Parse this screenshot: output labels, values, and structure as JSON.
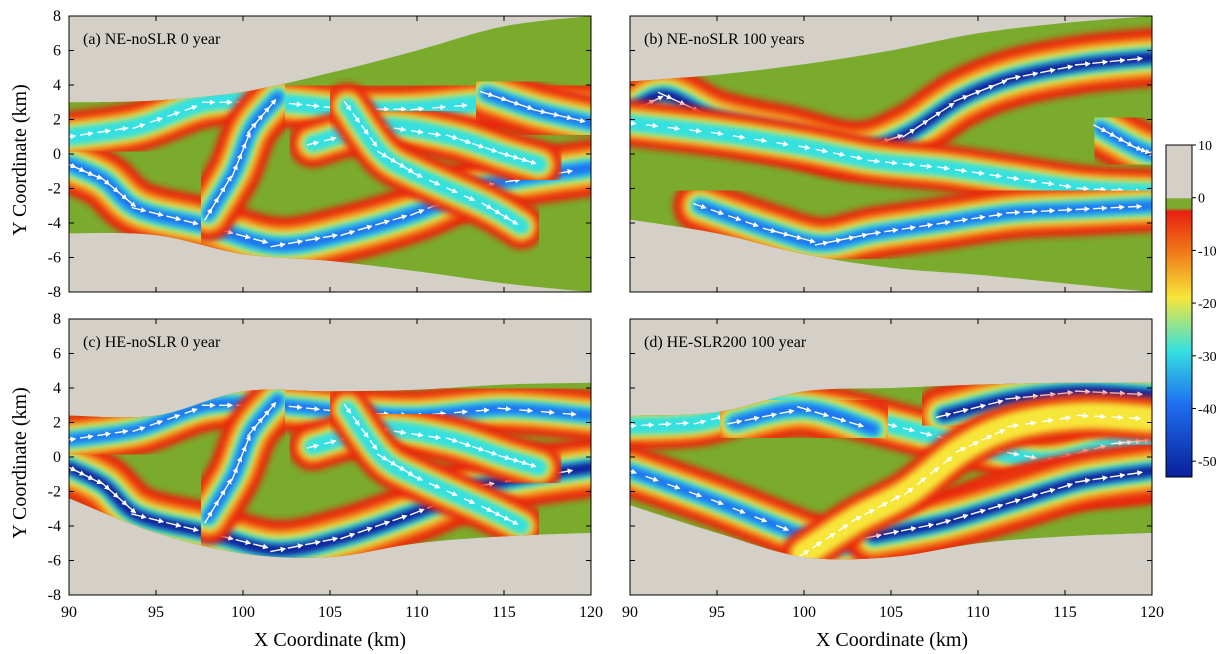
{
  "chart_data": {
    "type": "heatmap",
    "shared_ylabel": "Y Coordinate (km)",
    "shared_xlabel": "X Coordinate (km)",
    "xlim": [
      90,
      120
    ],
    "ylim": [
      -8,
      8
    ],
    "xticks": [
      90,
      95,
      100,
      105,
      110,
      115,
      120
    ],
    "yticks": [
      -8,
      -6,
      -4,
      -2,
      0,
      2,
      4,
      6,
      8
    ],
    "grid": false,
    "colorbar": {
      "range": [
        -53,
        10
      ],
      "ticks": [
        10,
        0,
        -10,
        -20,
        -30,
        -40,
        -50
      ],
      "colors": {
        "land": "#d4d0c8",
        "shoal": "#7aab2c",
        "shallow": "#e82010",
        "mid": "#f7e63a",
        "deep_mid": "#35e0e0",
        "deep": "#0a1f9a"
      }
    },
    "vector_color": "#ffffff",
    "panels": [
      {
        "title": "(a) NE-noSLR 0 year",
        "domain_x": [
          90,
          120
        ],
        "domain_top": [
          [
            90,
            3.0
          ],
          [
            95,
            3.1
          ],
          [
            100,
            3.6
          ],
          [
            105,
            4.7
          ],
          [
            110,
            6.0
          ],
          [
            115,
            7.4
          ],
          [
            120,
            8.0
          ]
        ],
        "domain_bottom": [
          [
            90,
            -4.6
          ],
          [
            95,
            -4.7
          ],
          [
            100,
            -5.8
          ],
          [
            105,
            -6.2
          ],
          [
            110,
            -6.8
          ],
          [
            115,
            -7.5
          ],
          [
            120,
            -8.0
          ]
        ],
        "channels": [
          {
            "points": [
              [
                90,
                -0.6
              ],
              [
                92,
                -1.5
              ],
              [
                94,
                -3.2
              ],
              [
                98,
                -4.2
              ],
              [
                102,
                -5.3
              ],
              [
                106,
                -4.6
              ],
              [
                110,
                -3.4
              ],
              [
                114,
                -1.8
              ],
              [
                120,
                -0.8
              ]
            ],
            "depth": -45
          },
          {
            "points": [
              [
                90,
                1.0
              ],
              [
                94,
                1.6
              ],
              [
                98,
                3.0
              ],
              [
                102,
                3.0
              ],
              [
                106,
                2.6
              ],
              [
                110,
                2.6
              ],
              [
                115,
                3.0
              ],
              [
                120,
                2.6
              ]
            ],
            "depth": -34
          },
          {
            "points": [
              [
                98,
                -3.5
              ],
              [
                99.5,
                -1.0
              ],
              [
                100.5,
                1.5
              ],
              [
                102,
                3.3
              ]
            ],
            "depth": -40
          },
          {
            "points": [
              [
                104,
                0.6
              ],
              [
                108,
                1.6
              ],
              [
                112,
                1.0
              ],
              [
                115,
                0.0
              ],
              [
                117,
                -0.6
              ]
            ],
            "depth": -30
          },
          {
            "points": [
              [
                106,
                2.8
              ],
              [
                108,
                0.0
              ],
              [
                110,
                -1.2
              ],
              [
                114,
                -3.0
              ],
              [
                116,
                -4.2
              ]
            ],
            "depth": -26
          },
          {
            "points": [
              [
                114,
                3.5
              ],
              [
                117,
                2.5
              ],
              [
                120,
                1.8
              ]
            ],
            "depth": -42
          }
        ]
      },
      {
        "title": "(b) NE-noSLR 100 years",
        "domain_x": [
          90,
          120
        ],
        "domain_top": [
          [
            90,
            4.2
          ],
          [
            95,
            4.6
          ],
          [
            100,
            5.2
          ],
          [
            105,
            6.0
          ],
          [
            110,
            7.0
          ],
          [
            115,
            7.6
          ],
          [
            120,
            8.0
          ]
        ],
        "domain_bottom": [
          [
            90,
            -3.8
          ],
          [
            95,
            -4.6
          ],
          [
            100,
            -5.8
          ],
          [
            105,
            -6.6
          ],
          [
            110,
            -7.0
          ],
          [
            115,
            -7.5
          ],
          [
            120,
            -8.0
          ]
        ],
        "channels": [
          {
            "points": [
              [
                90,
                2.4
              ],
              [
                92,
                3.4
              ],
              [
                95,
                2.0
              ],
              [
                99,
                1.1
              ],
              [
                103,
                0.2
              ],
              [
                106,
                1.2
              ],
              [
                109,
                3.2
              ],
              [
                112,
                4.4
              ],
              [
                116,
                5.2
              ],
              [
                120,
                5.6
              ]
            ],
            "depth": -48
          },
          {
            "points": [
              [
                90,
                1.8
              ],
              [
                95,
                1.2
              ],
              [
                100,
                0.4
              ],
              [
                104,
                -0.4
              ],
              [
                108,
                -0.8
              ],
              [
                112,
                -1.4
              ],
              [
                116,
                -2.0
              ],
              [
                120,
                -2.2
              ]
            ],
            "depth": -28
          },
          {
            "points": [
              [
                94,
                -3.0
              ],
              [
                98,
                -4.4
              ],
              [
                101,
                -5.2
              ],
              [
                104,
                -4.6
              ],
              [
                108,
                -4.0
              ],
              [
                112,
                -3.4
              ],
              [
                116,
                -3.2
              ],
              [
                120,
                -3.0
              ]
            ],
            "depth": -38
          },
          {
            "points": [
              [
                117,
                1.5
              ],
              [
                119,
                0.4
              ],
              [
                120,
                0.0
              ]
            ],
            "depth": -45
          }
        ]
      },
      {
        "title": "(c) HE-noSLR 0 year",
        "domain_x": [
          90,
          120
        ],
        "domain_top": [
          [
            90,
            2.4
          ],
          [
            95,
            2.4
          ],
          [
            100,
            3.8
          ],
          [
            105,
            3.8
          ],
          [
            110,
            3.9
          ],
          [
            115,
            4.2
          ],
          [
            120,
            4.3
          ]
        ],
        "domain_bottom": [
          [
            90,
            -2.4
          ],
          [
            95,
            -4.4
          ],
          [
            100,
            -5.6
          ],
          [
            105,
            -5.8
          ],
          [
            110,
            -5.0
          ],
          [
            115,
            -4.6
          ],
          [
            120,
            -4.4
          ]
        ],
        "channels": [
          {
            "points": [
              [
                90,
                -0.6
              ],
              [
                92,
                -1.6
              ],
              [
                94,
                -3.4
              ],
              [
                98,
                -4.4
              ],
              [
                102,
                -5.4
              ],
              [
                106,
                -4.6
              ],
              [
                110,
                -3.2
              ],
              [
                114,
                -1.6
              ],
              [
                120,
                -0.6
              ]
            ],
            "depth": -50
          },
          {
            "points": [
              [
                90,
                1.0
              ],
              [
                94,
                1.6
              ],
              [
                98,
                3.0
              ],
              [
                102,
                3.0
              ],
              [
                106,
                2.6
              ],
              [
                110,
                2.4
              ],
              [
                115,
                2.8
              ],
              [
                120,
                2.4
              ]
            ],
            "depth": -36
          },
          {
            "points": [
              [
                98,
                -3.5
              ],
              [
                99.5,
                -1.0
              ],
              [
                100.5,
                1.5
              ],
              [
                102,
                3.3
              ]
            ],
            "depth": -40
          },
          {
            "points": [
              [
                104,
                0.6
              ],
              [
                108,
                1.6
              ],
              [
                112,
                1.0
              ],
              [
                115,
                0.0
              ],
              [
                117,
                -0.6
              ]
            ],
            "depth": -30
          },
          {
            "points": [
              [
                106,
                2.8
              ],
              [
                108,
                0.0
              ],
              [
                110,
                -1.2
              ],
              [
                114,
                -3.0
              ],
              [
                116,
                -4.0
              ]
            ],
            "depth": -26
          }
        ]
      },
      {
        "title": "(d) HE-SLR200 100 year",
        "domain_x": [
          90,
          120
        ],
        "domain_top": [
          [
            90,
            2.4
          ],
          [
            95,
            2.6
          ],
          [
            100,
            3.8
          ],
          [
            105,
            4.0
          ],
          [
            110,
            4.2
          ],
          [
            115,
            4.3
          ],
          [
            120,
            4.3
          ]
        ],
        "domain_bottom": [
          [
            90,
            -2.8
          ],
          [
            95,
            -4.4
          ],
          [
            100,
            -5.8
          ],
          [
            105,
            -5.8
          ],
          [
            110,
            -5.0
          ],
          [
            115,
            -4.6
          ],
          [
            120,
            -4.4
          ]
        ],
        "channels": [
          {
            "points": [
              [
                90,
                1.8
              ],
              [
                94,
                2.0
              ],
              [
                98,
                3.0
              ],
              [
                102,
                2.6
              ],
              [
                106,
                1.6
              ],
              [
                110,
                0.6
              ],
              [
                114,
                -0.2
              ],
              [
                118,
                0.8
              ],
              [
                120,
                1.0
              ]
            ],
            "depth": -30
          },
          {
            "points": [
              [
                96,
                2.0
              ],
              [
                100,
                2.8
              ],
              [
                104,
                1.6
              ]
            ],
            "depth": -45
          },
          {
            "points": [
              [
                90,
                -0.8
              ],
              [
                95,
                -2.6
              ],
              [
                100,
                -4.6
              ],
              [
                102,
                -5.2
              ],
              [
                105,
                -4.6
              ],
              [
                108,
                -3.6
              ],
              [
                111,
                -2.4
              ],
              [
                114,
                -1.6
              ],
              [
                118,
                -1.4
              ],
              [
                120,
                -1.2
              ]
            ],
            "depth": -36
          },
          {
            "points": [
              [
                104,
                -4.6
              ],
              [
                108,
                -3.8
              ],
              [
                112,
                -2.6
              ],
              [
                116,
                -1.4
              ],
              [
                120,
                -0.8
              ]
            ],
            "depth": -48
          },
          {
            "points": [
              [
                108,
                2.4
              ],
              [
                112,
                3.4
              ],
              [
                116,
                3.8
              ],
              [
                120,
                3.6
              ]
            ],
            "depth": -50
          },
          {
            "points": [
              [
                100,
                -5.6
              ],
              [
                103,
                -3.6
              ],
              [
                106,
                -2.0
              ],
              [
                109,
                0.4
              ],
              [
                112,
                1.8
              ],
              [
                116,
                2.4
              ],
              [
                120,
                2.2
              ]
            ],
            "depth": -24
          }
        ]
      }
    ]
  }
}
